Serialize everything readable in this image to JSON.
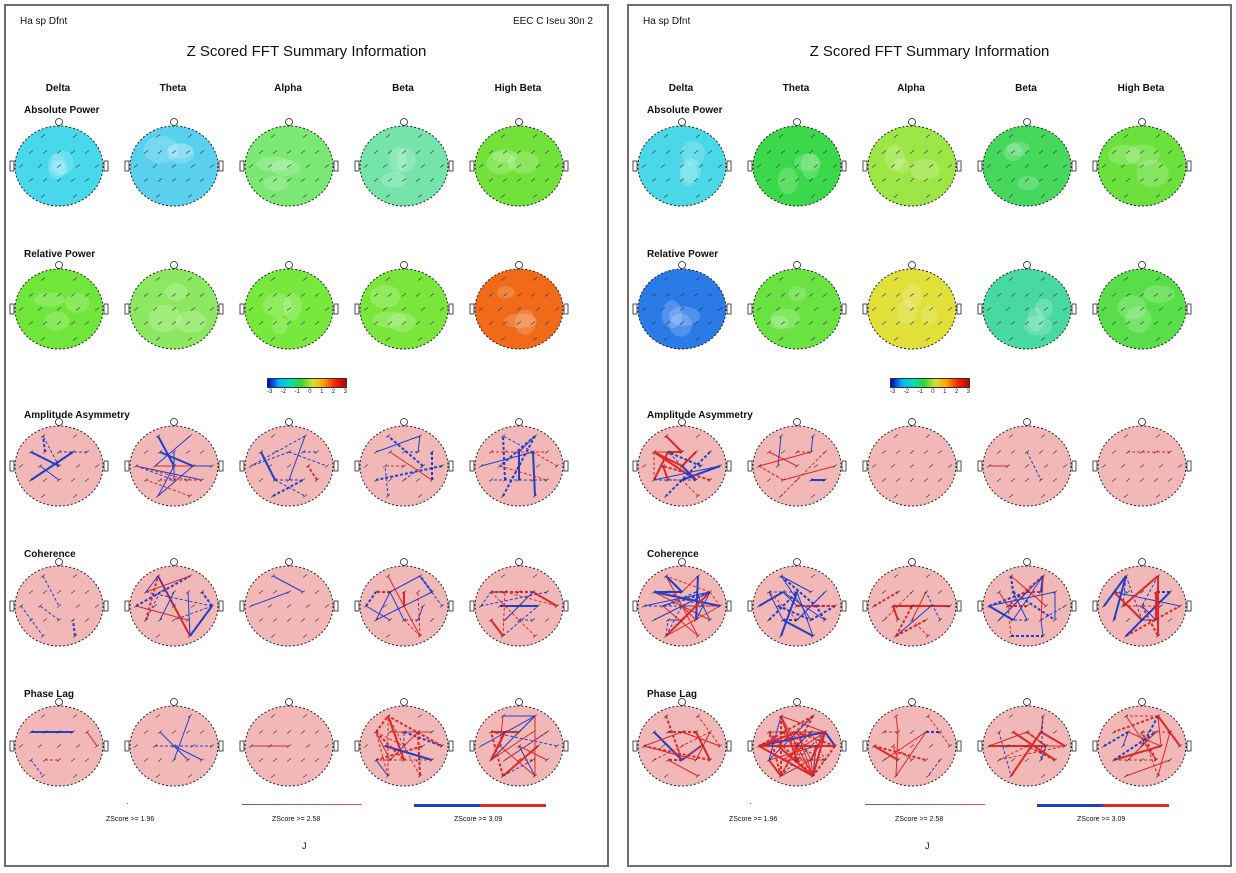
{
  "panels": [
    {
      "header_left": "Ha sp Dfnt",
      "header_right": "EEC C Iseu 30n 2",
      "title": "Z Scored FFT Summary Information",
      "bands": [
        "Delta",
        "Theta",
        "Alpha",
        "Beta",
        "High Beta"
      ],
      "rows": [
        "Absolute Power",
        "Relative Power",
        "Amplitude Asymmetry",
        "Coherence",
        "Phase Lag"
      ],
      "scale_ticks": [
        "-3",
        "-2",
        "-1",
        "0",
        "1",
        "2",
        "3"
      ],
      "legend": [
        "ZScore >= 1.96",
        "ZScore >= 2.58",
        "ZScore >= 3.09"
      ],
      "page_number": "J",
      "colors": {
        "abs": [
          "#48d8ec",
          "#58d0ee",
          "#7ae872",
          "#74e4aa",
          "#72e23a"
        ],
        "rel": [
          "#70e63a",
          "#8ce860",
          "#78e83c",
          "#7ae63c",
          "#f06a18"
        ],
        "asym": [
          "#1f3fd0",
          "#1f3fd0",
          "#1f3fd0",
          "#1f3fd0",
          "#1f3fd0"
        ],
        "coh": [
          "#1f3fd0",
          "#1f3fd0",
          "#1f3fd0",
          "#1f3fd0",
          "#1f3fd0"
        ],
        "phase": [
          "#e02828",
          "#1f3fd0",
          "#e02828",
          "#e02828",
          "#e02828"
        ]
      },
      "line_counts": {
        "asym": [
          6,
          14,
          12,
          12,
          14
        ],
        "coh": [
          4,
          14,
          2,
          16,
          14
        ],
        "phase": [
          4,
          4,
          1,
          22,
          24
        ]
      }
    },
    {
      "header_left": "Ha sp Dfnt",
      "header_right": "",
      "title": "Z Scored FFT Summary Information",
      "bands": [
        "Delta",
        "Theta",
        "Alpha",
        "Beta",
        "High Beta"
      ],
      "rows": [
        "Absolute Power",
        "Relative Power",
        "Amplitude Asymmetry",
        "Coherence",
        "Phase Lag"
      ],
      "scale_ticks": [
        "-3",
        "-2",
        "-1",
        "0",
        "1",
        "2",
        "3"
      ],
      "legend": [
        "ZScore >= 1.96",
        "ZScore >= 2.58",
        "ZScore >= 3.09"
      ],
      "page_number": "J",
      "colors": {
        "abs": [
          "#4ad8e8",
          "#3ad84a",
          "#9ee646",
          "#46d85c",
          "#6ce03c"
        ],
        "rel": [
          "#2a7ae8",
          "#6ae242",
          "#e0e038",
          "#48d8a2",
          "#58de48"
        ],
        "asym": [
          "#e02828",
          "#e02828",
          "#e02828",
          "#e02828",
          "#e02828"
        ],
        "coh": [
          "#1f3fd0",
          "#1f3fd0",
          "#e02828",
          "#1f3fd0",
          "#1f3fd0"
        ],
        "phase": [
          "#e02828",
          "#e02828",
          "#e02828",
          "#e02828",
          "#e02828"
        ]
      },
      "line_counts": {
        "asym": [
          26,
          10,
          0,
          2,
          1
        ],
        "coh": [
          30,
          22,
          10,
          24,
          22
        ],
        "phase": [
          18,
          60,
          12,
          18,
          20
        ]
      }
    }
  ]
}
